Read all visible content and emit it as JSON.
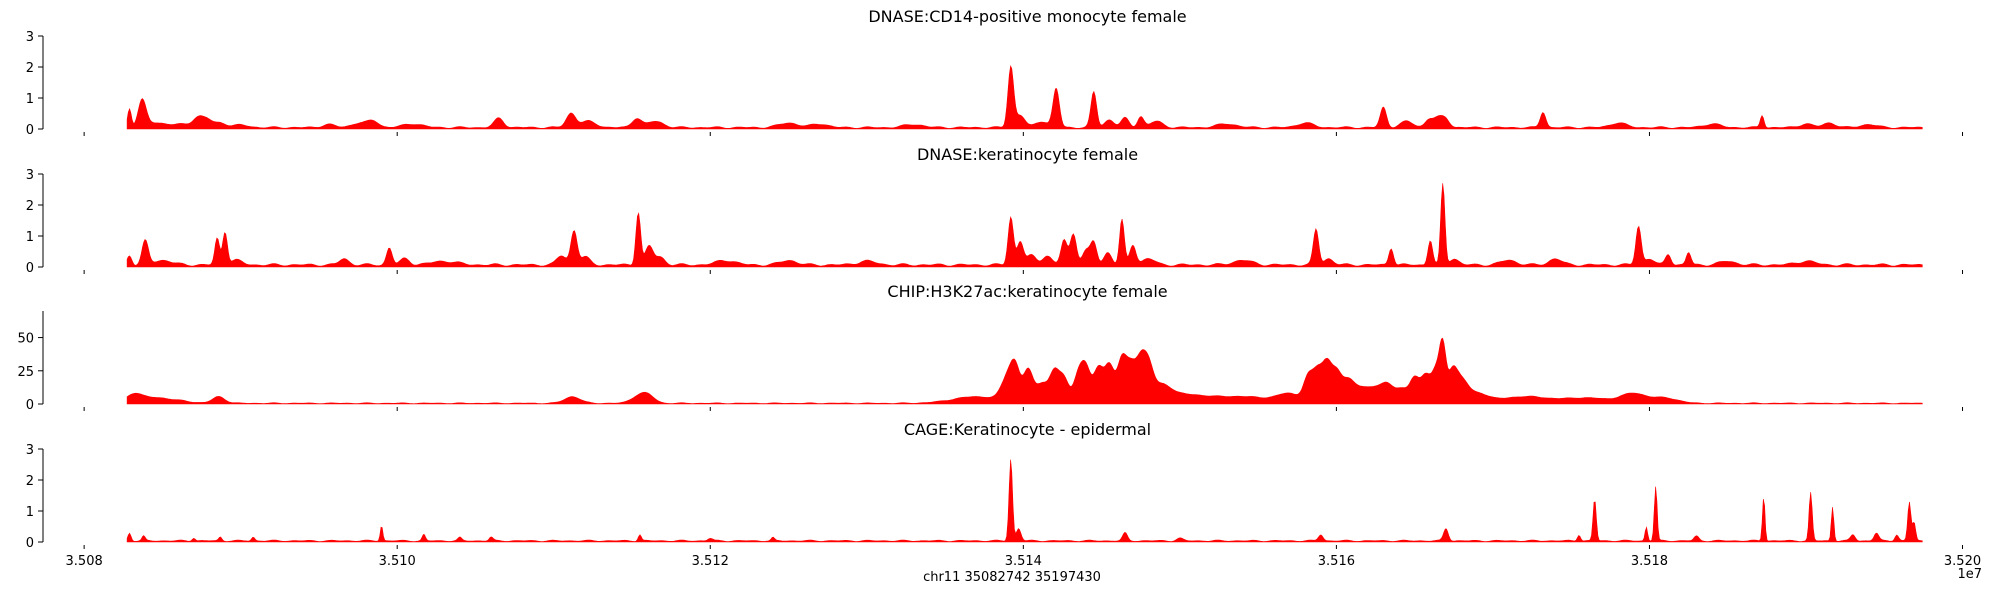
{
  "chart_data": {
    "type": "area",
    "x_axis": {
      "label": "chr11 35082742 35197430",
      "ticks": [
        "3.508",
        "3.510",
        "3.512",
        "3.514",
        "3.516",
        "3.518",
        "3.520"
      ],
      "tick_values": [
        35080000,
        35100000,
        35120000,
        35140000,
        35160000,
        35180000,
        35200000
      ],
      "offset_text": "1e7",
      "range": [
        35077500,
        35201500
      ],
      "data_range": [
        35082742,
        35197430
      ]
    },
    "fill_color": "#ff0000",
    "tracks": [
      {
        "title": "DNASE:CD14-positive monocyte female",
        "ylim": [
          0,
          3
        ],
        "yticks": [
          "0",
          "1",
          "2",
          "3"
        ],
        "ytick_values": [
          0,
          1,
          2,
          3
        ],
        "baseline": 0.05,
        "peaks": [
          [
            35082900,
            0.6,
            120
          ],
          [
            35083700,
            0.85,
            250
          ],
          [
            35084500,
            0.15,
            600
          ],
          [
            35086200,
            0.1,
            800
          ],
          [
            35087300,
            0.3,
            350
          ],
          [
            35087900,
            0.2,
            300
          ],
          [
            35088700,
            0.15,
            400
          ],
          [
            35090000,
            0.08,
            500
          ],
          [
            35095600,
            0.1,
            400
          ],
          [
            35097600,
            0.15,
            500
          ],
          [
            35098500,
            0.2,
            350
          ],
          [
            35101000,
            0.12,
            600
          ],
          [
            35106500,
            0.3,
            300
          ],
          [
            35111100,
            0.45,
            300
          ],
          [
            35112200,
            0.2,
            500
          ],
          [
            35115300,
            0.3,
            300
          ],
          [
            35116500,
            0.2,
            500
          ],
          [
            35125000,
            0.15,
            600
          ],
          [
            35127000,
            0.12,
            500
          ],
          [
            35133000,
            0.1,
            600
          ],
          [
            35139200,
            1.95,
            180
          ],
          [
            35139800,
            0.4,
            300
          ],
          [
            35141200,
            0.2,
            400
          ],
          [
            35142100,
            1.25,
            200
          ],
          [
            35144500,
            1.15,
            180
          ],
          [
            35145500,
            0.25,
            300
          ],
          [
            35146500,
            0.3,
            250
          ],
          [
            35147500,
            0.35,
            200
          ],
          [
            35148500,
            0.2,
            400
          ],
          [
            35153000,
            0.12,
            600
          ],
          [
            35158000,
            0.15,
            500
          ],
          [
            35163000,
            0.65,
            200
          ],
          [
            35164500,
            0.2,
            400
          ],
          [
            35165900,
            0.25,
            250
          ],
          [
            35166500,
            0.3,
            300
          ],
          [
            35167000,
            0.25,
            250
          ],
          [
            35173200,
            0.5,
            180
          ],
          [
            35178000,
            0.15,
            500
          ],
          [
            35184000,
            0.12,
            500
          ],
          [
            35187200,
            0.4,
            120
          ],
          [
            35190000,
            0.12,
            400
          ],
          [
            35191500,
            0.15,
            400
          ],
          [
            35194000,
            0.1,
            500
          ]
        ]
      },
      {
        "title": "DNASE:keratinocyte female",
        "ylim": [
          0,
          3
        ],
        "yticks": [
          "0",
          "1",
          "2",
          "3"
        ],
        "ytick_values": [
          0,
          1,
          2,
          3
        ],
        "baseline": 0.07,
        "peaks": [
          [
            35082900,
            0.3,
            150
          ],
          [
            35083900,
            0.75,
            200
          ],
          [
            35085000,
            0.15,
            600
          ],
          [
            35088500,
            0.85,
            150
          ],
          [
            35089000,
            1.05,
            150
          ],
          [
            35089700,
            0.15,
            400
          ],
          [
            35096600,
            0.2,
            300
          ],
          [
            35099500,
            0.55,
            180
          ],
          [
            35100500,
            0.2,
            300
          ],
          [
            35103000,
            0.12,
            800
          ],
          [
            35110500,
            0.3,
            300
          ],
          [
            35111300,
            1.1,
            200
          ],
          [
            35112000,
            0.25,
            300
          ],
          [
            35115400,
            1.7,
            150
          ],
          [
            35116100,
            0.6,
            250
          ],
          [
            35116800,
            0.25,
            300
          ],
          [
            35121000,
            0.15,
            600
          ],
          [
            35125000,
            0.15,
            500
          ],
          [
            35130000,
            0.12,
            600
          ],
          [
            35139200,
            1.55,
            170
          ],
          [
            35139800,
            0.75,
            200
          ],
          [
            35140500,
            0.3,
            300
          ],
          [
            35141500,
            0.3,
            300
          ],
          [
            35142600,
            0.8,
            200
          ],
          [
            35143200,
            1.0,
            200
          ],
          [
            35144000,
            0.45,
            250
          ],
          [
            35144500,
            0.7,
            200
          ],
          [
            35145400,
            0.4,
            250
          ],
          [
            35146300,
            1.45,
            150
          ],
          [
            35147000,
            0.65,
            200
          ],
          [
            35148000,
            0.2,
            400
          ],
          [
            35154000,
            0.15,
            600
          ],
          [
            35158700,
            1.15,
            170
          ],
          [
            35159500,
            0.2,
            300
          ],
          [
            35163500,
            0.55,
            150
          ],
          [
            35166000,
            0.8,
            150
          ],
          [
            35166800,
            2.6,
            130
          ],
          [
            35167500,
            0.2,
            300
          ],
          [
            35171000,
            0.15,
            500
          ],
          [
            35174000,
            0.2,
            400
          ],
          [
            35179300,
            1.25,
            170
          ],
          [
            35180000,
            0.2,
            300
          ],
          [
            35181200,
            0.35,
            180
          ],
          [
            35182500,
            0.4,
            150
          ],
          [
            35185000,
            0.12,
            500
          ],
          [
            35190000,
            0.12,
            600
          ]
        ]
      },
      {
        "title": "CHIP:H3K27ac:keratinocyte female",
        "ylim": [
          0,
          70
        ],
        "yticks": [
          "0",
          "25",
          "50"
        ],
        "ytick_values": [
          0,
          25,
          50
        ],
        "baseline": 0.6,
        "peaks": [
          [
            35083200,
            7,
            500
          ],
          [
            35084500,
            4,
            700
          ],
          [
            35086000,
            2,
            800
          ],
          [
            35088600,
            5,
            400
          ],
          [
            35111200,
            5,
            500
          ],
          [
            35115500,
            6,
            500
          ],
          [
            35116100,
            4,
            400
          ],
          [
            35137000,
            5,
            1500
          ],
          [
            35139000,
            18,
            400
          ],
          [
            35139500,
            22,
            300
          ],
          [
            35140300,
            24,
            300
          ],
          [
            35141200,
            15,
            400
          ],
          [
            35142000,
            22,
            300
          ],
          [
            35142600,
            18,
            300
          ],
          [
            35143500,
            20,
            300
          ],
          [
            35144000,
            25,
            300
          ],
          [
            35144800,
            26,
            300
          ],
          [
            35145500,
            28,
            300
          ],
          [
            35146300,
            32,
            300
          ],
          [
            35146900,
            25,
            300
          ],
          [
            35147500,
            28,
            300
          ],
          [
            35148000,
            22,
            300
          ],
          [
            35148800,
            10,
            600
          ],
          [
            35150000,
            6,
            1500
          ],
          [
            35154000,
            5,
            2000
          ],
          [
            35157000,
            6,
            700
          ],
          [
            35158200,
            18,
            300
          ],
          [
            35158800,
            22,
            300
          ],
          [
            35159400,
            28,
            300
          ],
          [
            35160000,
            20,
            300
          ],
          [
            35160700,
            15,
            400
          ],
          [
            35161500,
            10,
            500
          ],
          [
            35162500,
            10,
            500
          ],
          [
            35163300,
            12,
            400
          ],
          [
            35164200,
            10,
            400
          ],
          [
            35165000,
            18,
            300
          ],
          [
            35165700,
            20,
            300
          ],
          [
            35166400,
            25,
            300
          ],
          [
            35166800,
            35,
            200
          ],
          [
            35167400,
            22,
            300
          ],
          [
            35168000,
            15,
            400
          ],
          [
            35169000,
            7,
            700
          ],
          [
            35172000,
            5,
            1500
          ],
          [
            35176000,
            4,
            1500
          ],
          [
            35179000,
            7,
            800
          ],
          [
            35181000,
            4,
            800
          ]
        ]
      },
      {
        "title": "CAGE:Keratinocyte - epidermal",
        "ylim": [
          0,
          3
        ],
        "yticks": [
          "0",
          "1",
          "2",
          "3"
        ],
        "ytick_values": [
          0,
          1,
          2,
          3
        ],
        "baseline": 0.04,
        "peaks": [
          [
            35082900,
            0.25,
            100
          ],
          [
            35083800,
            0.15,
            100
          ],
          [
            35087000,
            0.1,
            100
          ],
          [
            35088700,
            0.12,
            100
          ],
          [
            35090800,
            0.12,
            100
          ],
          [
            35099000,
            0.5,
            80
          ],
          [
            35101700,
            0.2,
            100
          ],
          [
            35104000,
            0.1,
            120
          ],
          [
            35106000,
            0.12,
            120
          ],
          [
            35115500,
            0.2,
            100
          ],
          [
            35120000,
            0.08,
            150
          ],
          [
            35124000,
            0.1,
            100
          ],
          [
            35139200,
            2.65,
            110
          ],
          [
            35139700,
            0.4,
            150
          ],
          [
            35146500,
            0.25,
            150
          ],
          [
            35150000,
            0.08,
            200
          ],
          [
            35159000,
            0.2,
            150
          ],
          [
            35167000,
            0.4,
            150
          ],
          [
            35175500,
            0.2,
            100
          ],
          [
            35176500,
            1.35,
            100
          ],
          [
            35179800,
            0.45,
            80
          ],
          [
            35180400,
            1.75,
            90
          ],
          [
            35183000,
            0.15,
            150
          ],
          [
            35187300,
            1.45,
            80
          ],
          [
            35190300,
            1.55,
            100
          ],
          [
            35191700,
            1.1,
            80
          ],
          [
            35193000,
            0.2,
            150
          ],
          [
            35194500,
            0.25,
            150
          ],
          [
            35195800,
            0.2,
            120
          ],
          [
            35196600,
            1.25,
            100
          ],
          [
            35196900,
            0.6,
            100
          ]
        ]
      }
    ]
  }
}
